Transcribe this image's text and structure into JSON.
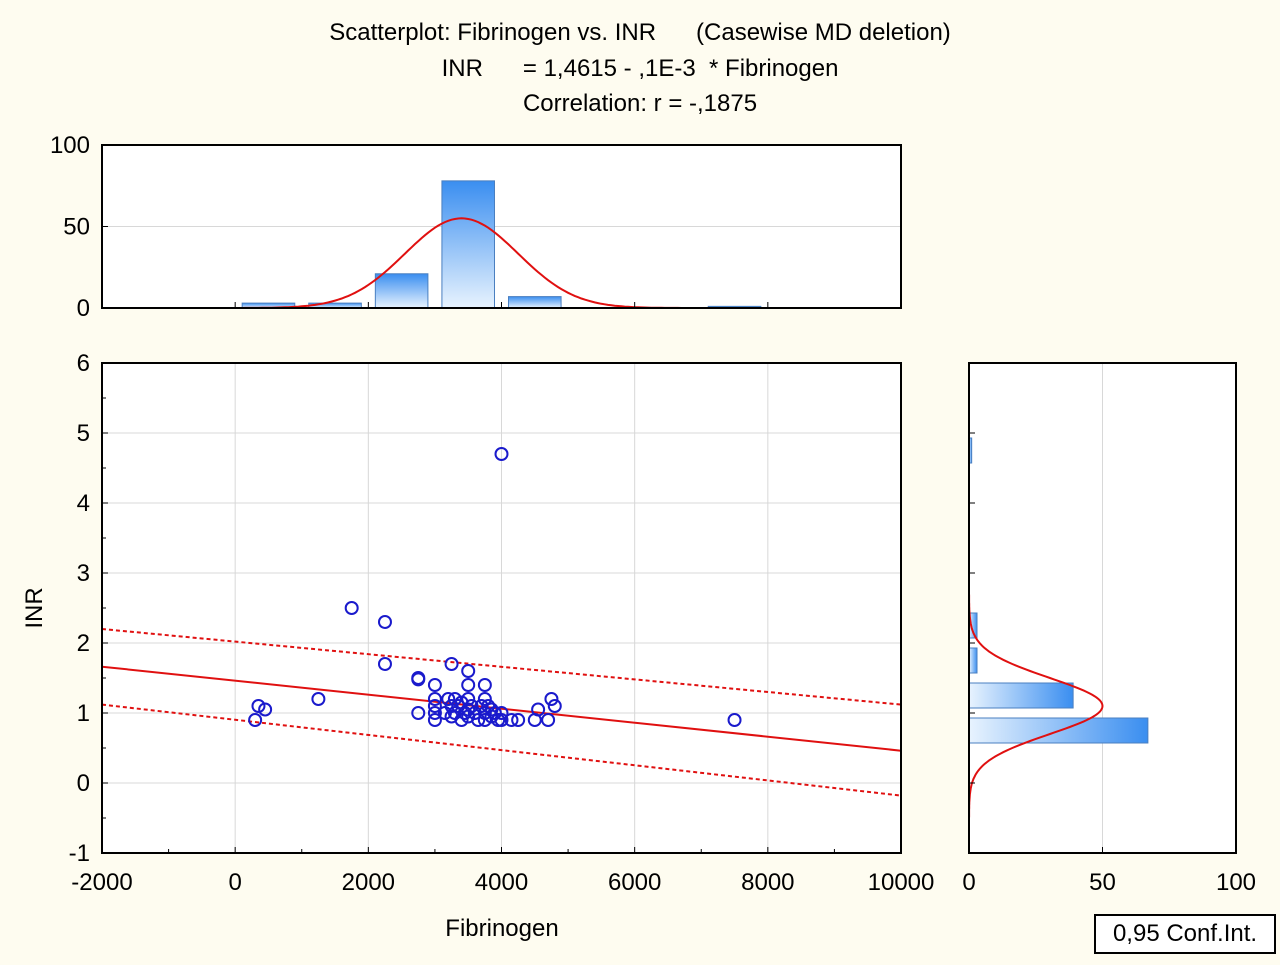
{
  "chart_data": {
    "type": "scatter",
    "title_lines": [
      "Scatterplot: Fibrinogen vs. INR      (Casewise MD deletion)",
      "INR      = 1,4615 - ,1E-3  * Fibrinogen",
      "Correlation: r = -,1875"
    ],
    "xlabel": "Fibrinogen",
    "ylabel": "INR",
    "xlim": [
      -2000,
      10000
    ],
    "ylim": [
      -1,
      6
    ],
    "x_ticks": [
      "-2000",
      "0",
      "2000",
      "4000",
      "6000",
      "8000",
      "10000"
    ],
    "y_ticks": [
      "-1",
      "0",
      "1",
      "2",
      "3",
      "4",
      "5",
      "6"
    ],
    "grid": true,
    "colors": {
      "points": "#1a1acc",
      "fit_line": "#e01010",
      "bar_dark": "#3a8ef0",
      "bar_light": "#e8f3fe",
      "grid": "#d8d8d8",
      "background": "#fefcf0"
    },
    "points": [
      {
        "x": 300,
        "y": 0.9
      },
      {
        "x": 350,
        "y": 1.1
      },
      {
        "x": 450,
        "y": 1.05
      },
      {
        "x": 1250,
        "y": 1.2
      },
      {
        "x": 1750,
        "y": 2.5
      },
      {
        "x": 2250,
        "y": 2.3
      },
      {
        "x": 2250,
        "y": 1.7
      },
      {
        "x": 2750,
        "y": 1.5
      },
      {
        "x": 2750,
        "y": 1.48
      },
      {
        "x": 2750,
        "y": 1.0
      },
      {
        "x": 3000,
        "y": 1.4
      },
      {
        "x": 3000,
        "y": 1.2
      },
      {
        "x": 3000,
        "y": 1.1
      },
      {
        "x": 3000,
        "y": 1.0
      },
      {
        "x": 3000,
        "y": 0.9
      },
      {
        "x": 3150,
        "y": 1.0
      },
      {
        "x": 3200,
        "y": 1.2
      },
      {
        "x": 3250,
        "y": 1.7
      },
      {
        "x": 3250,
        "y": 1.1
      },
      {
        "x": 3250,
        "y": 0.95
      },
      {
        "x": 3300,
        "y": 1.2
      },
      {
        "x": 3300,
        "y": 1.0
      },
      {
        "x": 3350,
        "y": 1.1
      },
      {
        "x": 3400,
        "y": 0.9
      },
      {
        "x": 3400,
        "y": 1.15
      },
      {
        "x": 3450,
        "y": 1.0
      },
      {
        "x": 3500,
        "y": 1.6
      },
      {
        "x": 3500,
        "y": 1.4
      },
      {
        "x": 3500,
        "y": 1.2
      },
      {
        "x": 3500,
        "y": 1.05
      },
      {
        "x": 3500,
        "y": 0.95
      },
      {
        "x": 3550,
        "y": 1.1
      },
      {
        "x": 3600,
        "y": 1.0
      },
      {
        "x": 3650,
        "y": 0.9
      },
      {
        "x": 3700,
        "y": 1.1
      },
      {
        "x": 3750,
        "y": 1.4
      },
      {
        "x": 3750,
        "y": 1.2
      },
      {
        "x": 3750,
        "y": 1.0
      },
      {
        "x": 3750,
        "y": 0.9
      },
      {
        "x": 3800,
        "y": 1.1
      },
      {
        "x": 3850,
        "y": 0.95
      },
      {
        "x": 3850,
        "y": 1.05
      },
      {
        "x": 3900,
        "y": 1.0
      },
      {
        "x": 3950,
        "y": 0.9
      },
      {
        "x": 4000,
        "y": 4.7
      },
      {
        "x": 4000,
        "y": 1.0
      },
      {
        "x": 4000,
        "y": 0.9
      },
      {
        "x": 4150,
        "y": 0.9
      },
      {
        "x": 4250,
        "y": 0.9
      },
      {
        "x": 4500,
        "y": 0.9
      },
      {
        "x": 4550,
        "y": 1.05
      },
      {
        "x": 4700,
        "y": 0.9
      },
      {
        "x": 4750,
        "y": 1.2
      },
      {
        "x": 4800,
        "y": 1.1
      },
      {
        "x": 7500,
        "y": 0.9
      }
    ],
    "regression": {
      "intercept": 1.4615,
      "slope": -0.0001
    },
    "confidence_band": {
      "upper": [
        {
          "x": -2000,
          "y": 2.2
        },
        {
          "x": 10000,
          "y": 1.12
        }
      ],
      "lower": [
        {
          "x": -2000,
          "y": 1.12
        },
        {
          "x": 10000,
          "y": -0.18
        }
      ]
    },
    "top_histogram": {
      "ylim": [
        0,
        100
      ],
      "y_ticks": [
        "0",
        "50",
        "100"
      ],
      "bins": [
        {
          "from": 0,
          "to": 1000,
          "count": 3
        },
        {
          "from": 1000,
          "to": 2000,
          "count": 3
        },
        {
          "from": 2000,
          "to": 3000,
          "count": 21
        },
        {
          "from": 3000,
          "to": 4000,
          "count": 78
        },
        {
          "from": 4000,
          "to": 5000,
          "count": 7
        },
        {
          "from": 7000,
          "to": 8000,
          "count": 1
        }
      ],
      "normal_curve": {
        "mean": 3400,
        "sd": 850,
        "peak": 55
      }
    },
    "right_histogram": {
      "xlim": [
        0,
        100
      ],
      "x_ticks": [
        "0",
        "50",
        "100"
      ],
      "bins": [
        {
          "from": 0.5,
          "to": 1.0,
          "count": 67
        },
        {
          "from": 1.0,
          "to": 1.5,
          "count": 39
        },
        {
          "from": 1.5,
          "to": 2.0,
          "count": 3
        },
        {
          "from": 2.0,
          "to": 2.5,
          "count": 3
        },
        {
          "from": 4.5,
          "to": 5.0,
          "count": 1
        }
      ],
      "normal_curve": {
        "mean": 1.1,
        "sd": 0.4,
        "peak": 50
      }
    },
    "legend": {
      "label": "0,95 Conf.Int.",
      "placement": "bottom-right"
    }
  }
}
